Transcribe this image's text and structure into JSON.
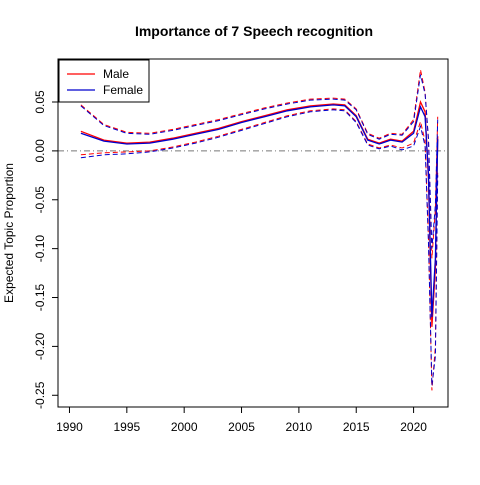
{
  "chart_data": {
    "type": "line",
    "title": "Importance of 7 Speech recognition",
    "xlabel": "",
    "ylabel": "Expected Topic Proportion",
    "xlim": [
      1989,
      2023
    ],
    "ylim": [
      -0.262,
      0.094
    ],
    "x_ticks": [
      1990,
      1995,
      2000,
      2005,
      2010,
      2015,
      2020
    ],
    "y_ticks": [
      0.05,
      0.0,
      -0.05,
      -0.1,
      -0.15,
      -0.2,
      -0.25
    ],
    "x_tick_labels": [
      "1990",
      "1995",
      "2000",
      "2005",
      "2010",
      "2015",
      "2020"
    ],
    "y_tick_labels": [
      "0.05",
      "0.00",
      "-0.05",
      "-0.10",
      "-0.15",
      "-0.20",
      "-0.25"
    ],
    "grid": false,
    "legend_position": "top-left",
    "reference_line": 0,
    "legend": [
      {
        "name": "Male",
        "color": "#ff0000"
      },
      {
        "name": "Female",
        "color": "#0000cd"
      }
    ],
    "series": [
      {
        "name": "Male",
        "color": "#ff0000",
        "x": [
          1991,
          1993,
          1995,
          1997,
          1999,
          2001,
          2003,
          2005,
          2007,
          2009,
          2011,
          2013,
          2014,
          2015,
          2016,
          2017,
          2018,
          2019,
          2020,
          2020.6,
          2021,
          2021.3,
          2021.6,
          2021.9,
          2022.1
        ],
        "mean": [
          0.02,
          0.011,
          0.008,
          0.009,
          0.013,
          0.018,
          0.023,
          0.03,
          0.036,
          0.042,
          0.046,
          0.048,
          0.047,
          0.036,
          0.012,
          0.008,
          0.012,
          0.01,
          0.02,
          0.05,
          0.04,
          -0.03,
          -0.18,
          -0.12,
          0.015
        ],
        "lower": [
          -0.004,
          -0.002,
          -0.001,
          0.0,
          0.004,
          0.009,
          0.015,
          0.022,
          0.029,
          0.036,
          0.041,
          0.043,
          0.042,
          0.03,
          0.007,
          0.003,
          0.006,
          0.003,
          0.008,
          0.03,
          0.01,
          -0.09,
          -0.245,
          -0.2,
          -0.02
        ],
        "upper": [
          0.047,
          0.027,
          0.019,
          0.018,
          0.022,
          0.027,
          0.032,
          0.038,
          0.044,
          0.049,
          0.053,
          0.054,
          0.053,
          0.043,
          0.018,
          0.013,
          0.018,
          0.017,
          0.032,
          0.083,
          0.06,
          0.01,
          -0.11,
          -0.06,
          0.035
        ]
      },
      {
        "name": "Female",
        "color": "#0000cd",
        "x": [
          1991,
          1993,
          1995,
          1997,
          1999,
          2001,
          2003,
          2005,
          2007,
          2009,
          2011,
          2013,
          2014,
          2015,
          2016,
          2017,
          2018,
          2019,
          2020,
          2020.6,
          2021,
          2021.3,
          2021.6,
          2021.9,
          2022.1
        ],
        "mean": [
          0.018,
          0.01,
          0.007,
          0.008,
          0.012,
          0.017,
          0.022,
          0.029,
          0.035,
          0.041,
          0.045,
          0.047,
          0.046,
          0.035,
          0.011,
          0.007,
          0.011,
          0.009,
          0.018,
          0.045,
          0.035,
          -0.025,
          -0.17,
          -0.11,
          0.012
        ],
        "lower": [
          -0.007,
          -0.004,
          -0.003,
          -0.001,
          0.003,
          0.008,
          0.014,
          0.021,
          0.028,
          0.035,
          0.04,
          0.042,
          0.041,
          0.029,
          0.006,
          0.002,
          0.005,
          0.001,
          0.005,
          0.025,
          0.005,
          -0.095,
          -0.24,
          -0.21,
          -0.025
        ],
        "upper": [
          0.046,
          0.026,
          0.018,
          0.017,
          0.021,
          0.026,
          0.031,
          0.037,
          0.043,
          0.048,
          0.052,
          0.053,
          0.052,
          0.042,
          0.017,
          0.012,
          0.017,
          0.016,
          0.03,
          0.078,
          0.058,
          0.012,
          -0.1,
          -0.055,
          0.032
        ]
      }
    ]
  }
}
